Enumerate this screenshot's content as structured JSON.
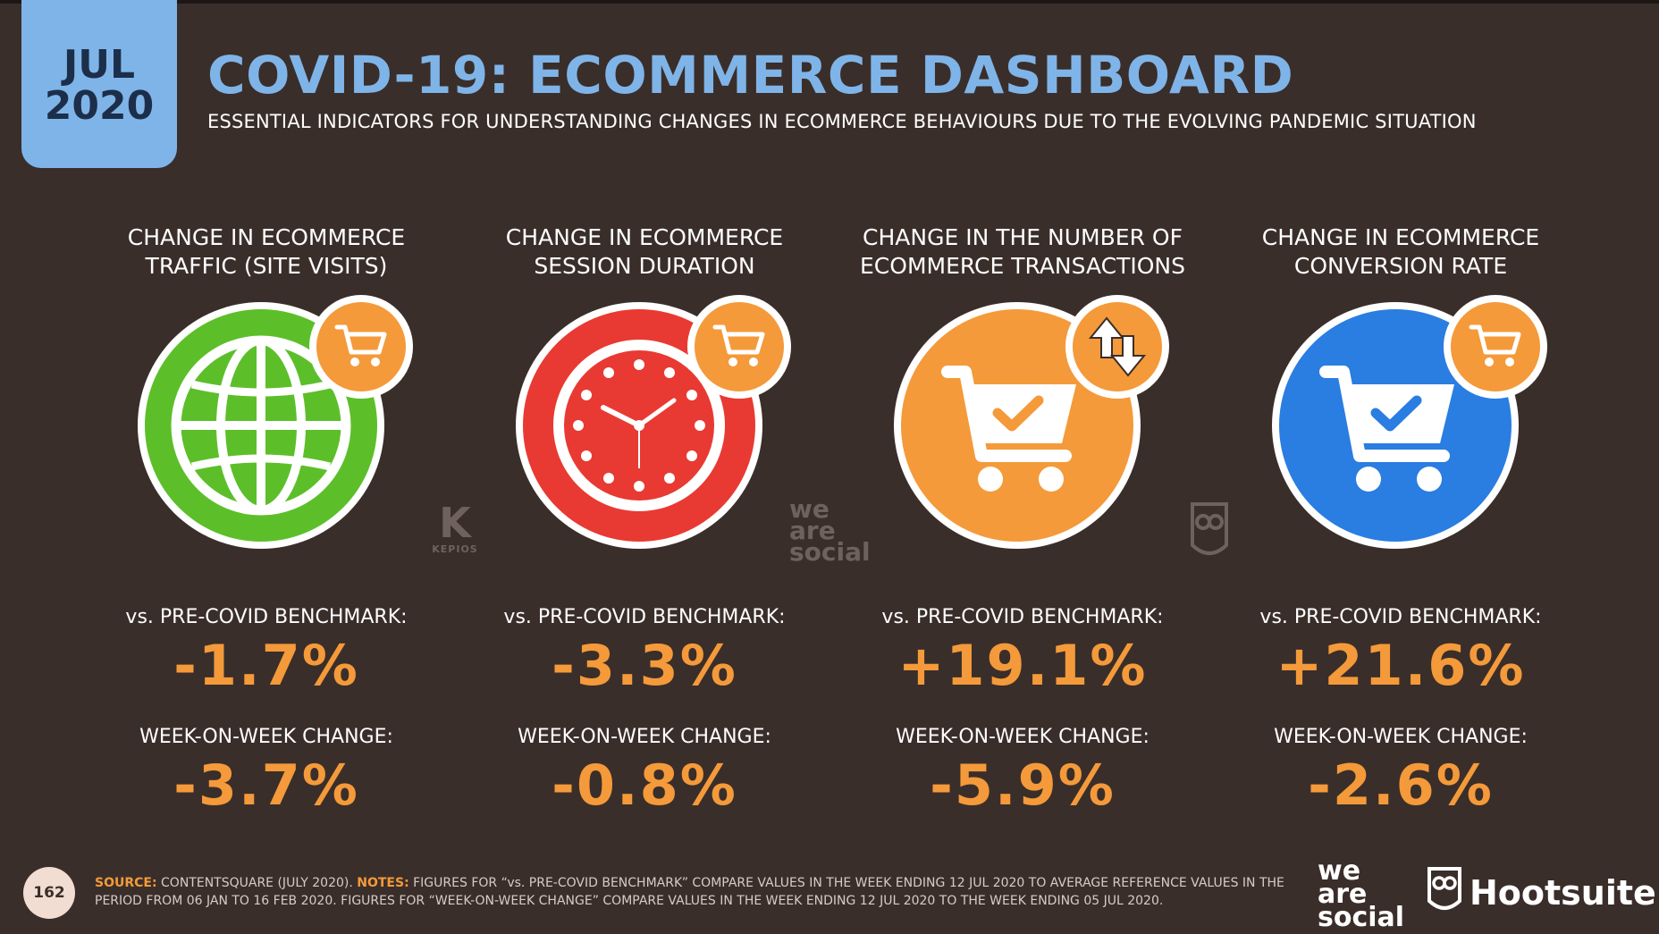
{
  "header": {
    "month": "JUL",
    "year": "2020",
    "title": "COVID-19: ECOMMERCE DASHBOARD",
    "subtitle": "ESSENTIAL INDICATORS FOR UNDERSTANDING CHANGES IN ECOMMERCE BEHAVIOURS DUE TO THE EVOLVING PANDEMIC SITUATION"
  },
  "colors": {
    "accent_blue": "#7fb4e8",
    "orange": "#f49a3a",
    "green": "#5cbf2a",
    "red": "#e83a32",
    "blue": "#2a7de1",
    "background": "#3a2e2a"
  },
  "metrics": [
    {
      "heading_line1": "CHANGE IN ECOMMERCE",
      "heading_line2": "TRAFFIC (SITE VISITS)",
      "icon": "globe-icon",
      "badge_icon": "cart-icon",
      "benchmark_label": "vs. PRE-COVID BENCHMARK:",
      "benchmark_value": "-1.7%",
      "wow_label": "WEEK-ON-WEEK CHANGE:",
      "wow_value": "-3.7%"
    },
    {
      "heading_line1": "CHANGE IN ECOMMERCE",
      "heading_line2": "SESSION DURATION",
      "icon": "clock-icon",
      "badge_icon": "cart-icon",
      "benchmark_label": "vs. PRE-COVID BENCHMARK:",
      "benchmark_value": "-3.3%",
      "wow_label": "WEEK-ON-WEEK CHANGE:",
      "wow_value": "-0.8%"
    },
    {
      "heading_line1": "CHANGE IN THE NUMBER OF",
      "heading_line2": "ECOMMERCE TRANSACTIONS",
      "icon": "cart-check-icon",
      "badge_icon": "up-down-arrows-icon",
      "benchmark_label": "vs. PRE-COVID BENCHMARK:",
      "benchmark_value": "+19.1%",
      "wow_label": "WEEK-ON-WEEK CHANGE:",
      "wow_value": "-5.9%"
    },
    {
      "heading_line1": "CHANGE IN ECOMMERCE",
      "heading_line2": "CONVERSION RATE",
      "icon": "cart-check-icon",
      "badge_icon": "cart-icon",
      "benchmark_label": "vs. PRE-COVID BENCHMARK:",
      "benchmark_value": "+21.6%",
      "wow_label": "WEEK-ON-WEEK CHANGE:",
      "wow_value": "-2.6%"
    }
  ],
  "watermarks": {
    "kepios_letter": "K",
    "kepios_text": "KEPIOS",
    "was_line1": "we",
    "was_line2": "are",
    "was_line3": "social"
  },
  "footer": {
    "page_number": "162",
    "source_label": "SOURCE:",
    "source_text": "CONTENTSQUARE (JULY 2020).",
    "notes_label": "NOTES:",
    "notes_text": "FIGURES FOR “vs. PRE-COVID BENCHMARK” COMPARE VALUES IN THE WEEK ENDING 12 JUL 2020 TO AVERAGE REFERENCE VALUES IN THE PERIOD FROM 06 JAN TO 16 FEB 2020. FIGURES FOR “WEEK-ON-WEEK CHANGE” COMPARE VALUES IN THE WEEK ENDING 12 JUL 2020 TO THE WEEK ENDING 05 JUL 2020.",
    "was_line1": "we",
    "was_line2": "are",
    "was_line3": "social",
    "hootsuite": "Hootsuite",
    "hootsuite_mark": "®"
  }
}
